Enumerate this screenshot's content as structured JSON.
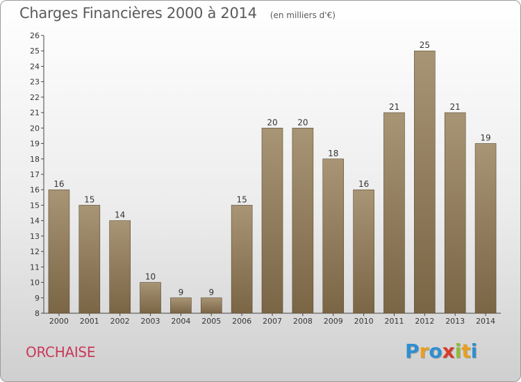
{
  "header": {
    "title": "Charges Financières 2000 à 2014",
    "unit": "(en milliers d'€)"
  },
  "footer": {
    "city": "ORCHAISE",
    "logo_letters": [
      "P",
      "r",
      "o",
      "x",
      "i",
      "t",
      "i"
    ],
    "logo_colors": [
      "#2f8fd0",
      "#e8a020",
      "#2f8fd0",
      "#d83a2a",
      "#8cbf3a",
      "#e8a020",
      "#2f8fd0"
    ]
  },
  "chart_data": {
    "type": "bar",
    "title": "Charges Financières 2000 à 2014",
    "subtitle": "(en milliers d'€)",
    "xlabel": "",
    "ylabel": "",
    "categories": [
      "2000",
      "2001",
      "2002",
      "2003",
      "2004",
      "2005",
      "2006",
      "2007",
      "2008",
      "2009",
      "2010",
      "2011",
      "2012",
      "2013",
      "2014"
    ],
    "values": [
      16,
      15,
      14,
      10,
      9,
      9,
      15,
      20,
      20,
      18,
      16,
      21,
      25,
      21,
      19
    ],
    "ylim": [
      8,
      26
    ],
    "yticks": [
      8,
      9,
      10,
      11,
      12,
      13,
      14,
      15,
      16,
      17,
      18,
      19,
      20,
      21,
      22,
      23,
      24,
      25,
      26
    ],
    "grid": false,
    "data_labels": true,
    "bar_color_top": "#a89575",
    "bar_color_bottom": "#7a6545"
  }
}
